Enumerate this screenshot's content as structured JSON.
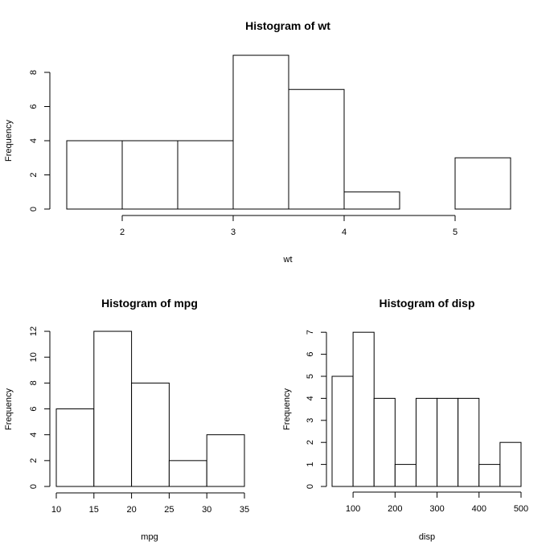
{
  "chart_data": [
    {
      "type": "bar",
      "title": "Histogram of wt",
      "xlabel": "wt",
      "ylabel": "Frequency",
      "breaks": [
        1.5,
        2,
        2.5,
        3,
        3.5,
        4,
        4.5,
        5,
        5.5
      ],
      "values": [
        4,
        4,
        4,
        9,
        7,
        1,
        0,
        3
      ],
      "xticks": [
        2,
        3,
        4,
        5
      ],
      "yticks": [
        0,
        2,
        4,
        6,
        8
      ],
      "xlim": [
        1.5,
        5.5
      ],
      "ylim": [
        0,
        9
      ]
    },
    {
      "type": "bar",
      "title": "Histogram of mpg",
      "xlabel": "mpg",
      "ylabel": "Frequency",
      "breaks": [
        10,
        15,
        20,
        25,
        30,
        35
      ],
      "values": [
        6,
        12,
        8,
        2,
        4
      ],
      "xticks": [
        10,
        15,
        20,
        25,
        30,
        35
      ],
      "yticks": [
        0,
        2,
        4,
        6,
        8,
        10,
        12
      ],
      "xlim": [
        10,
        35
      ],
      "ylim": [
        0,
        12
      ]
    },
    {
      "type": "bar",
      "title": "Histogram of disp",
      "xlabel": "disp",
      "ylabel": "Frequency",
      "breaks": [
        50,
        100,
        150,
        200,
        250,
        300,
        350,
        400,
        450,
        500
      ],
      "values": [
        5,
        7,
        4,
        1,
        4,
        4,
        4,
        1,
        2
      ],
      "xticks": [
        100,
        200,
        300,
        400,
        500
      ],
      "yticks": [
        0,
        1,
        2,
        3,
        4,
        5,
        6,
        7
      ],
      "xlim": [
        50,
        500
      ],
      "ylim": [
        0,
        7
      ]
    }
  ]
}
